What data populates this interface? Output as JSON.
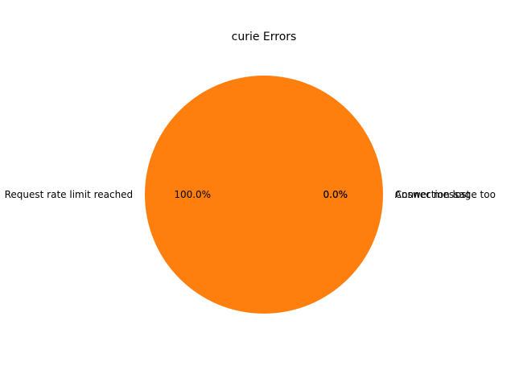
{
  "chart_data": {
    "type": "pie",
    "title": "curie Errors",
    "slices": [
      {
        "label": "Connection lost",
        "value": 0.0,
        "pct_label": "0.0%",
        "color": "#1f77b4"
      },
      {
        "label": "Request rate limit reached",
        "value": 100.0,
        "pct_label": "100.0%",
        "color": "#ff7f0e"
      },
      {
        "label": "Answer message too",
        "value": 0.0,
        "pct_label": "0.0%",
        "color": "#2ca02c"
      }
    ],
    "legend": "none"
  }
}
